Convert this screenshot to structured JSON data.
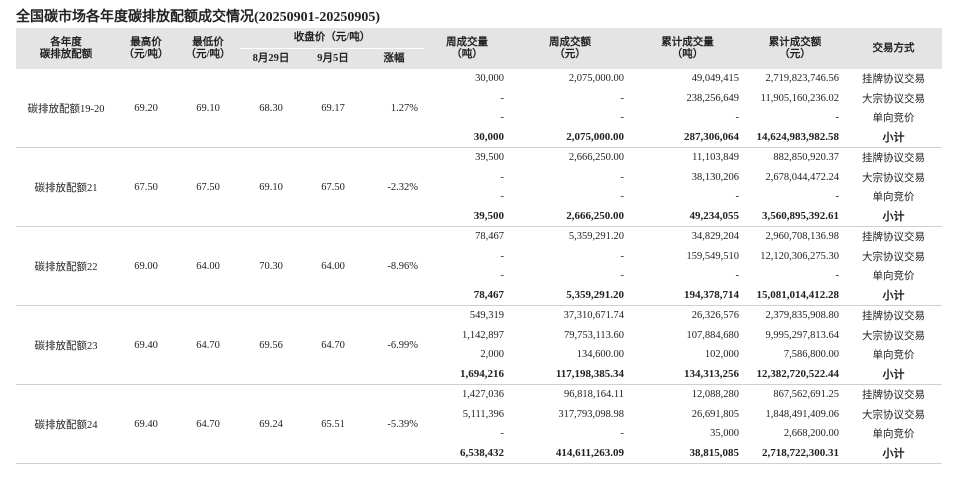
{
  "title": "全国碳市场各年度碳排放配额成交情况(20250901-20250905)",
  "header": {
    "year": [
      "各年度",
      "碳排放配额"
    ],
    "high": [
      "最高价",
      "（元/吨）"
    ],
    "low": [
      "最低价",
      "（元/吨）"
    ],
    "close": "收盘价（元/吨）",
    "close_aug29": "8月29日",
    "close_sep5": "9月5日",
    "change": "涨幅",
    "week_volume": [
      "周成交量",
      "（吨）"
    ],
    "week_amount": [
      "周成交额",
      "（元）"
    ],
    "cum_volume": [
      "累计成交量",
      "（吨）"
    ],
    "cum_amount": [
      "累计成交额",
      "（元）"
    ],
    "method": "交易方式"
  },
  "groups": [
    {
      "name": "碳排放配额19-20",
      "high": "69.20",
      "low": "69.10",
      "close_aug29": "68.30",
      "close_sep5": "69.17",
      "change": "1.27%",
      "rows": [
        [
          "30,000",
          "2,075,000.00",
          "49,049,415",
          "2,719,823,746.56",
          "挂牌协议交易"
        ],
        [
          "-",
          "-",
          "238,256,649",
          "11,905,160,236.02",
          "大宗协议交易"
        ],
        [
          "-",
          "-",
          "-",
          "-",
          "单向竞价"
        ],
        [
          "30,000",
          "2,075,000.00",
          "287,306,064",
          "14,624,983,982.58",
          "小计"
        ]
      ]
    },
    {
      "name": "碳排放配额21",
      "high": "67.50",
      "low": "67.50",
      "close_aug29": "69.10",
      "close_sep5": "67.50",
      "change": "-2.32%",
      "rows": [
        [
          "39,500",
          "2,666,250.00",
          "11,103,849",
          "882,850,920.37",
          "挂牌协议交易"
        ],
        [
          "-",
          "-",
          "38,130,206",
          "2,678,044,472.24",
          "大宗协议交易"
        ],
        [
          "-",
          "-",
          "-",
          "-",
          "单向竞价"
        ],
        [
          "39,500",
          "2,666,250.00",
          "49,234,055",
          "3,560,895,392.61",
          "小计"
        ]
      ]
    },
    {
      "name": "碳排放配额22",
      "high": "69.00",
      "low": "64.00",
      "close_aug29": "70.30",
      "close_sep5": "64.00",
      "change": "-8.96%",
      "rows": [
        [
          "78,467",
          "5,359,291.20",
          "34,829,204",
          "2,960,708,136.98",
          "挂牌协议交易"
        ],
        [
          "-",
          "-",
          "159,549,510",
          "12,120,306,275.30",
          "大宗协议交易"
        ],
        [
          "-",
          "-",
          "-",
          "-",
          "单向竞价"
        ],
        [
          "78,467",
          "5,359,291.20",
          "194,378,714",
          "15,081,014,412.28",
          "小计"
        ]
      ]
    },
    {
      "name": "碳排放配额23",
      "high": "69.40",
      "low": "64.70",
      "close_aug29": "69.56",
      "close_sep5": "64.70",
      "change": "-6.99%",
      "rows": [
        [
          "549,319",
          "37,310,671.74",
          "26,326,576",
          "2,379,835,908.80",
          "挂牌协议交易"
        ],
        [
          "1,142,897",
          "79,753,113.60",
          "107,884,680",
          "9,995,297,813.64",
          "大宗协议交易"
        ],
        [
          "2,000",
          "134,600.00",
          "102,000",
          "7,586,800.00",
          "单向竞价"
        ],
        [
          "1,694,216",
          "117,198,385.34",
          "134,313,256",
          "12,382,720,522.44",
          "小计"
        ]
      ]
    },
    {
      "name": "碳排放配额24",
      "high": "69.40",
      "low": "64.70",
      "close_aug29": "69.24",
      "close_sep5": "65.51",
      "change": "-5.39%",
      "rows": [
        [
          "1,427,036",
          "96,818,164.11",
          "12,088,280",
          "867,562,691.25",
          "挂牌协议交易"
        ],
        [
          "5,111,396",
          "317,793,098.98",
          "26,691,805",
          "1,848,491,409.06",
          "大宗协议交易"
        ],
        [
          "-",
          "-",
          "35,000",
          "2,668,200.00",
          "单向竞价"
        ],
        [
          "6,538,432",
          "414,611,263.09",
          "38,815,085",
          "2,718,722,300.31",
          "小计"
        ]
      ]
    }
  ]
}
